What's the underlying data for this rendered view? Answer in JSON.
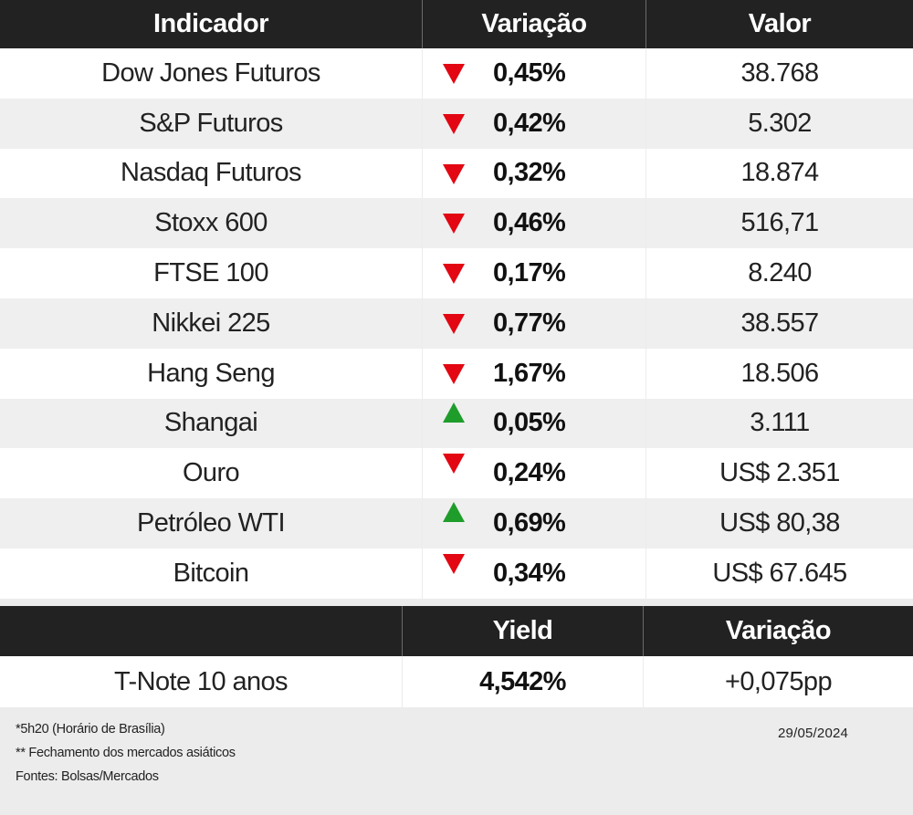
{
  "main_table": {
    "headers": [
      "Indicador",
      "Variação",
      "Valor"
    ],
    "rows": [
      {
        "name": "Dow Jones Futuros",
        "direction": "down",
        "change": "0,45%",
        "value": "38.768"
      },
      {
        "name": "S&P Futuros",
        "direction": "down",
        "change": "0,42%",
        "value": "5.302"
      },
      {
        "name": "Nasdaq Futuros",
        "direction": "down",
        "change": "0,32%",
        "value": "18.874"
      },
      {
        "name": "Stoxx 600",
        "direction": "down",
        "change": "0,46%",
        "value": "516,71"
      },
      {
        "name": "FTSE 100",
        "direction": "down",
        "change": "0,17%",
        "value": "8.240"
      },
      {
        "name": "Nikkei 225",
        "direction": "down",
        "change": "0,77%",
        "value": "38.557"
      },
      {
        "name": "Hang Seng",
        "direction": "down",
        "change": "1,67%",
        "value": "18.506"
      },
      {
        "name": "Shangai",
        "direction": "up",
        "change": "0,05%",
        "value": "3.111"
      },
      {
        "name": "Ouro",
        "direction": "down",
        "change": "0,24%",
        "value": "US$ 2.351"
      },
      {
        "name": "Petróleo WTI",
        "direction": "up",
        "change": "0,69%",
        "value": "US$ 80,38"
      },
      {
        "name": "Bitcoin",
        "direction": "down",
        "change": "0,34%",
        "value": "US$ 67.645"
      }
    ]
  },
  "yield_table": {
    "headers": [
      "",
      "Yield",
      "Variação"
    ],
    "row": {
      "name": "T-Note 10 anos",
      "yield": "4,542%",
      "change": "+0,075pp"
    }
  },
  "footer": {
    "notes": [
      "*5h20 (Horário de Brasília)",
      "** Fechamento dos mercados asiáticos",
      "Fontes: Bolsas/Mercados"
    ],
    "date": "29/05/2024"
  },
  "colors": {
    "header_bg": "#222222",
    "down_arrow": "#e30613",
    "up_arrow": "#1f9d2b"
  }
}
